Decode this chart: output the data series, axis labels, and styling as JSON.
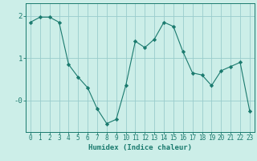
{
  "x": [
    0,
    1,
    2,
    3,
    4,
    5,
    6,
    7,
    8,
    9,
    10,
    11,
    12,
    13,
    14,
    15,
    16,
    17,
    18,
    19,
    20,
    21,
    22,
    23
  ],
  "y": [
    1.85,
    1.97,
    1.97,
    1.85,
    0.85,
    0.55,
    0.3,
    -0.2,
    -0.55,
    -0.45,
    0.35,
    1.4,
    1.25,
    1.45,
    1.85,
    1.75,
    1.15,
    0.65,
    0.6,
    0.35,
    0.7,
    0.8,
    0.9,
    -0.25
  ],
  "xlabel": "Humidex (Indice chaleur)",
  "ylim": [
    -0.75,
    2.3
  ],
  "xlim": [
    -0.5,
    23.5
  ],
  "line_color": "#1a7a6e",
  "marker": "D",
  "marker_size": 2.2,
  "bg_color": "#cceee8",
  "grid_color": "#99cccc",
  "axis_color": "#1a7a6e",
  "tick_color": "#1a7a6e",
  "label_color": "#1a7a6e",
  "xlabel_fontsize": 6.5,
  "tick_fontsize": 5.5,
  "ytick_fontsize": 6.5
}
